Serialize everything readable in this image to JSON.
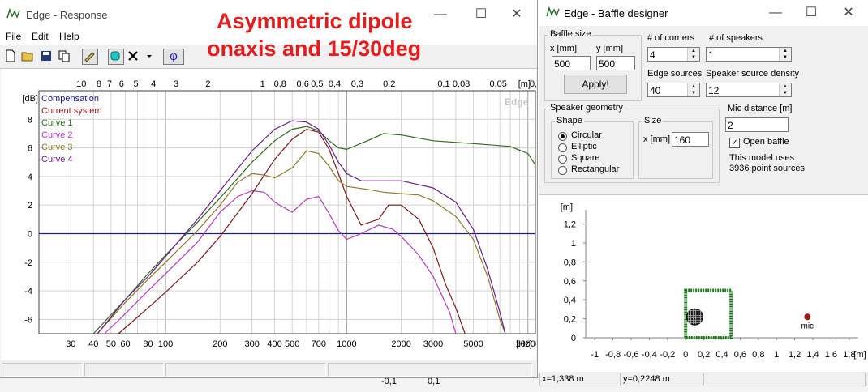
{
  "overlay": {
    "line1": "Asymmetric dipole",
    "line2": "onaxis and 15/30deg"
  },
  "response_window": {
    "title": "Edge - Response",
    "controls": {
      "minimize": "—",
      "maximize": "☐",
      "close": "✕"
    },
    "menu": [
      "File",
      "Edit",
      "Help"
    ],
    "toolbar": {
      "phi_label": "φ"
    },
    "chart": {
      "watermark": "Edge",
      "ylabel": "[dB]",
      "top_unit": "[m]",
      "bottom_unit": "[Hz]"
    }
  },
  "background_strip": {
    "values": [
      "-0,1",
      "0,1"
    ]
  },
  "chart_data": {
    "type": "line",
    "xscale": "log",
    "xlim": [
      20,
      11000
    ],
    "ylim": [
      -7,
      10
    ],
    "x_ticks": [
      30,
      40,
      50,
      60,
      80,
      100,
      200,
      300,
      400,
      500,
      700,
      1000,
      2000,
      3000,
      5000,
      10000
    ],
    "y_ticks": [
      -6,
      -4,
      -2,
      0,
      2,
      4,
      6,
      8
    ],
    "top_ticks": [
      "10",
      "8",
      "7",
      "6",
      "5",
      "4",
      "3",
      "2",
      "1",
      "0,8",
      "0,6",
      "0,5",
      "0,4",
      "0,3",
      "0,2",
      "0,1",
      "0,08",
      "0,05",
      "0,03"
    ],
    "legend_position": "top-left",
    "series": [
      {
        "name": "Compensation",
        "color": "#1a1a8c",
        "points": [
          [
            20,
            0
          ],
          [
            11000,
            0
          ]
        ]
      },
      {
        "name": "Current system",
        "color": "#8b1a1a",
        "points": []
      },
      {
        "name": "Curve 1",
        "color": "#2f6b1e",
        "points": [
          [
            40,
            -7
          ],
          [
            60,
            -4.6
          ],
          [
            80,
            -2.8
          ],
          [
            100,
            -1.5
          ],
          [
            150,
            0.8
          ],
          [
            200,
            2.5
          ],
          [
            300,
            5
          ],
          [
            400,
            6.5
          ],
          [
            500,
            7.3
          ],
          [
            600,
            7.5
          ],
          [
            700,
            7.2
          ],
          [
            800,
            6.5
          ],
          [
            900,
            6.0
          ],
          [
            1000,
            5.9
          ],
          [
            1300,
            6.5
          ],
          [
            1600,
            7.0
          ],
          [
            2000,
            6.9
          ],
          [
            3000,
            6.5
          ],
          [
            5000,
            6.3
          ],
          [
            8000,
            6.1
          ],
          [
            10000,
            5.6
          ],
          [
            11000,
            4.8
          ]
        ]
      },
      {
        "name": "Curve 2",
        "color": "#b53ac0",
        "points": [
          [
            46,
            -7
          ],
          [
            60,
            -5.6
          ],
          [
            80,
            -4.0
          ],
          [
            100,
            -2.8
          ],
          [
            150,
            -0.6
          ],
          [
            200,
            1.5
          ],
          [
            250,
            2.6
          ],
          [
            300,
            3.0
          ],
          [
            350,
            2.9
          ],
          [
            400,
            2.2
          ],
          [
            500,
            1.5
          ],
          [
            600,
            2.4
          ],
          [
            700,
            2.6
          ],
          [
            800,
            1.4
          ],
          [
            900,
            0.2
          ],
          [
            1000,
            -0.4
          ],
          [
            1200,
            0
          ],
          [
            1500,
            0.6
          ],
          [
            1800,
            0.3
          ],
          [
            2000,
            -0.2
          ],
          [
            2500,
            -1.5
          ],
          [
            3000,
            -3
          ],
          [
            3700,
            -5.5
          ],
          [
            4000,
            -7
          ]
        ]
      },
      {
        "name": "Curve 3",
        "color": "#8a7a2a",
        "points": [
          [
            42,
            -7
          ],
          [
            60,
            -4.8
          ],
          [
            80,
            -3.2
          ],
          [
            100,
            -2.0
          ],
          [
            150,
            0.2
          ],
          [
            200,
            2.0
          ],
          [
            250,
            3.6
          ],
          [
            300,
            4.2
          ],
          [
            350,
            4.1
          ],
          [
            400,
            3.9
          ],
          [
            500,
            4.6
          ],
          [
            600,
            5.8
          ],
          [
            700,
            5.6
          ],
          [
            800,
            4.7
          ],
          [
            900,
            3.7
          ],
          [
            1000,
            3.3
          ],
          [
            1300,
            3.1
          ],
          [
            1600,
            2.9
          ],
          [
            2000,
            2.8
          ],
          [
            2500,
            2.7
          ],
          [
            3000,
            2.3
          ],
          [
            4000,
            1.2
          ],
          [
            5000,
            -0.4
          ],
          [
            6000,
            -3
          ],
          [
            7000,
            -6
          ],
          [
            7500,
            -7
          ]
        ]
      },
      {
        "name": "Curve 4",
        "color": "#6a1c8c",
        "points": [
          [
            42,
            -7
          ],
          [
            60,
            -4.6
          ],
          [
            80,
            -3.0
          ],
          [
            100,
            -1.6
          ],
          [
            150,
            1
          ],
          [
            200,
            3
          ],
          [
            300,
            5.8
          ],
          [
            400,
            7.3
          ],
          [
            500,
            7.9
          ],
          [
            600,
            7.8
          ],
          [
            700,
            7.3
          ],
          [
            800,
            6.2
          ],
          [
            900,
            5.0
          ],
          [
            1000,
            4.2
          ],
          [
            1200,
            3.7
          ],
          [
            1500,
            3.7
          ],
          [
            2000,
            3.7
          ],
          [
            3000,
            3.2
          ],
          [
            4000,
            2.2
          ],
          [
            5000,
            0.3
          ],
          [
            6000,
            -2.5
          ],
          [
            7000,
            -5.5
          ],
          [
            7500,
            -7
          ]
        ]
      },
      {
        "name": "",
        "color": "#7a1a1a",
        "points": [
          [
            55,
            -7
          ],
          [
            80,
            -5.2
          ],
          [
            100,
            -4.1
          ],
          [
            150,
            -2.0
          ],
          [
            200,
            -0.2
          ],
          [
            300,
            2.8
          ],
          [
            400,
            5.2
          ],
          [
            500,
            6.6
          ],
          [
            600,
            7.3
          ],
          [
            700,
            7.1
          ],
          [
            800,
            5.9
          ],
          [
            900,
            4.2
          ],
          [
            1000,
            2.6
          ],
          [
            1200,
            0.6
          ],
          [
            1500,
            1.0
          ],
          [
            1700,
            2.0
          ],
          [
            2000,
            2.0
          ],
          [
            2500,
            1.0
          ],
          [
            3000,
            -1
          ],
          [
            3500,
            -3.5
          ],
          [
            4000,
            -5.2
          ],
          [
            4500,
            -7
          ]
        ]
      }
    ]
  },
  "baffle_window": {
    "title": "Edge - Baffle designer",
    "controls": {
      "minimize": "—",
      "maximize": "☐",
      "close": "✕"
    },
    "baffle_size": {
      "caption": "Baffle size",
      "x_label": "x [mm]",
      "y_label": "y [mm]",
      "x_value": "500",
      "y_value": "500",
      "apply": "Apply!"
    },
    "corners": {
      "label": "# of corners",
      "value": "4"
    },
    "speakers": {
      "label": "# of speakers",
      "value": "1"
    },
    "edge_sources": {
      "label": "Edge sources",
      "value": "40"
    },
    "speaker_density": {
      "label": "Speaker source density",
      "value": "12"
    },
    "geometry": {
      "caption": "Speaker geometry",
      "shape_caption": "Shape",
      "shapes": [
        {
          "label": "Circular",
          "selected": true
        },
        {
          "label": "Elliptic",
          "selected": false
        },
        {
          "label": "Square",
          "selected": false
        },
        {
          "label": "Rectangular",
          "selected": false
        }
      ],
      "size_caption": "Size",
      "size_label": "x [mm]",
      "size_value": "160"
    },
    "mic": {
      "label": "Mic distance [m]",
      "value": "2"
    },
    "open_baffle": {
      "label": "Open baffle",
      "checked": true
    },
    "model_note": "This model uses",
    "point_sources": "3936 point sources",
    "plot": {
      "unit": "[m]",
      "y_ticks": [
        "1,2",
        "1",
        "0,8",
        "0,6",
        "0,4",
        "0,2",
        "0"
      ],
      "x_ticks": [
        "-1",
        "-0,8",
        "-0,6",
        "-0,4",
        "-0,2",
        "0",
        "0,2",
        "0,4",
        "0,6",
        "0,8",
        "1",
        "1,2",
        "1,4",
        "1,6",
        "1,8"
      ],
      "x_unit": "[m]",
      "mic_label": "mic",
      "baffle_extent_m": [
        0,
        0.5
      ],
      "speaker_center_m": [
        0.1,
        0.22
      ],
      "mic_position_m": [
        1.34,
        0.22
      ]
    },
    "status": {
      "x": "x=1,338 m",
      "y": "y=0,2248 m"
    }
  }
}
